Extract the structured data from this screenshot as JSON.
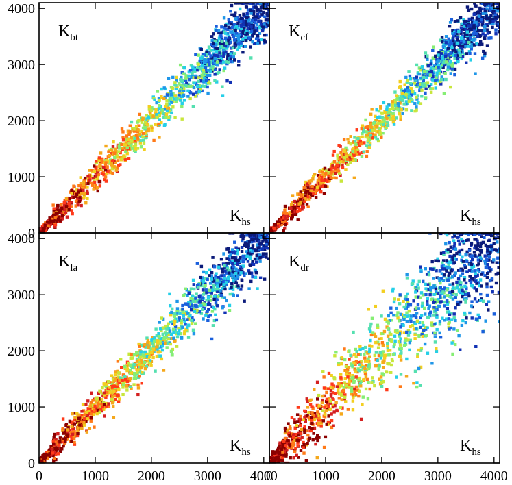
{
  "chart_data": {
    "type": "scatter",
    "layout": "2x2 panels sharing axes",
    "xlim": [
      0,
      4100
    ],
    "ylim": [
      0,
      4100
    ],
    "x_ticks": [
      0,
      1000,
      2000,
      3000,
      4000
    ],
    "y_ticks": [
      0,
      1000,
      2000,
      3000,
      4000
    ],
    "x_tick_labels": [
      "0",
      "1000",
      "2000",
      "3000",
      "4000"
    ],
    "y_tick_labels": [
      "0",
      "1000",
      "2000",
      "3000",
      "4000"
    ],
    "color_palette": [
      "#8b0000",
      "#d42020",
      "#ff3a1a",
      "#ff7a18",
      "#f5a81c",
      "#f3cf20",
      "#c8e63c",
      "#86ee74",
      "#55e0b0",
      "#25cfe8",
      "#1f96e8",
      "#1a5fdc",
      "#1232b4",
      "#0b1a7a"
    ],
    "panels": [
      {
        "id": "bt",
        "label_main": "K",
        "label_sub": "bt",
        "xlabel_main": "K",
        "xlabel_sub": "hs",
        "spread": 230,
        "n_points": 1500,
        "note": "points scattered around the y = x diagonal, colors run red (low) to blue (high)"
      },
      {
        "id": "cf",
        "label_main": "K",
        "label_sub": "cf",
        "xlabel_main": "K",
        "xlabel_sub": "hs",
        "spread": 200,
        "n_points": 1500,
        "note": "points scattered around the y = x diagonal"
      },
      {
        "id": "la",
        "label_main": "K",
        "label_sub": "la",
        "xlabel_main": "K",
        "xlabel_sub": "hs",
        "spread": 240,
        "n_points": 1500,
        "note": "points scattered around the y = x diagonal"
      },
      {
        "id": "dr",
        "label_main": "K",
        "label_sub": "dr",
        "xlabel_main": "K",
        "xlabel_sub": "hs",
        "spread": 480,
        "n_points": 1500,
        "note": "much wider scatter around the y = x diagonal"
      }
    ]
  }
}
